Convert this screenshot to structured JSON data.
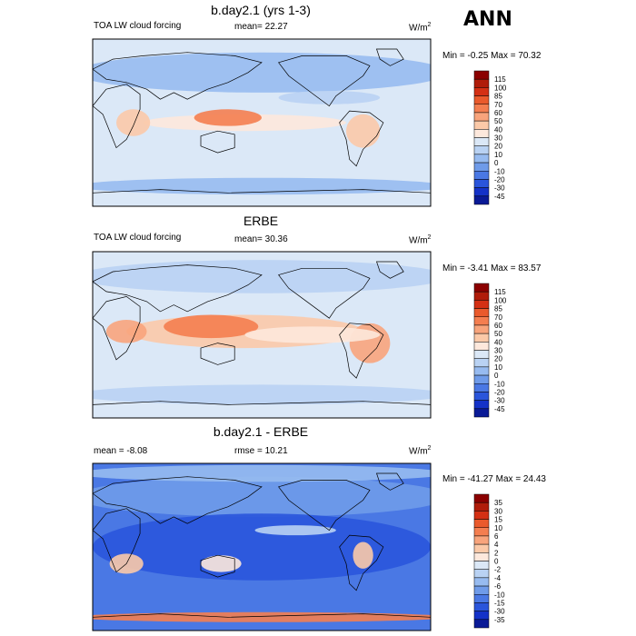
{
  "page": {
    "season": "ANN"
  },
  "chart_data": [
    {
      "type": "heatmap",
      "title": "b.day2.1 (yrs 1-3)",
      "left_label": "TOA LW cloud forcing",
      "center_label": "mean=  22.27",
      "units": "W/m",
      "units_exp": "2",
      "minmax_label": "Min =  -0.25 Max =  70.32",
      "mean": 22.27,
      "min": -0.25,
      "max": 70.32,
      "colorbar": {
        "levels": [
          "115",
          "100",
          "85",
          "70",
          "60",
          "50",
          "40",
          "30",
          "20",
          "10",
          "0",
          "-10",
          "-20",
          "-30",
          "-45"
        ],
        "colors": [
          "#8b0000",
          "#b01c0a",
          "#d43014",
          "#ea5a2c",
          "#f47e50",
          "#f8a47c",
          "#fbc9a8",
          "#fde8dc",
          "#dbe8f7",
          "#b9d2f3",
          "#97bbf0",
          "#6f9be9",
          "#4a78e4",
          "#2a55db",
          "#1432c8",
          "#0a1a96"
        ]
      }
    },
    {
      "type": "heatmap",
      "title": "ERBE",
      "left_label": "TOA LW cloud forcing",
      "center_label": "mean=  30.36",
      "units": "W/m",
      "units_exp": "2",
      "minmax_label": "Min =  -3.41 Max =  83.57",
      "mean": 30.36,
      "min": -3.41,
      "max": 83.57,
      "colorbar": {
        "levels": [
          "115",
          "100",
          "85",
          "70",
          "60",
          "50",
          "40",
          "30",
          "20",
          "10",
          "0",
          "-10",
          "-20",
          "-30",
          "-45"
        ],
        "colors": [
          "#8b0000",
          "#b01c0a",
          "#d43014",
          "#ea5a2c",
          "#f47e50",
          "#f8a47c",
          "#fbc9a8",
          "#fde8dc",
          "#dbe8f7",
          "#b9d2f3",
          "#97bbf0",
          "#6f9be9",
          "#4a78e4",
          "#2a55db",
          "#1432c8",
          "#0a1a96"
        ]
      }
    },
    {
      "type": "heatmap",
      "title": "b.day2.1 - ERBE",
      "left_label": "mean =  -8.08",
      "center_label": "rmse =  10.21",
      "units": "W/m",
      "units_exp": "2",
      "minmax_label": "Min = -41.27 Max =  24.43",
      "mean": -8.08,
      "rmse": 10.21,
      "min": -41.27,
      "max": 24.43,
      "colorbar": {
        "levels": [
          "35",
          "30",
          "15",
          "10",
          "6",
          "4",
          "2",
          "0",
          "-2",
          "-4",
          "-6",
          "-10",
          "-15",
          "-30",
          "-35"
        ],
        "colors": [
          "#8b0000",
          "#b01c0a",
          "#d43014",
          "#ea5a2c",
          "#f47e50",
          "#f8a47c",
          "#fbc9a8",
          "#fde8dc",
          "#dbe8f7",
          "#b9d2f3",
          "#97bbf0",
          "#6f9be9",
          "#4a78e4",
          "#2a55db",
          "#1432c8",
          "#0a1a96"
        ]
      }
    }
  ]
}
